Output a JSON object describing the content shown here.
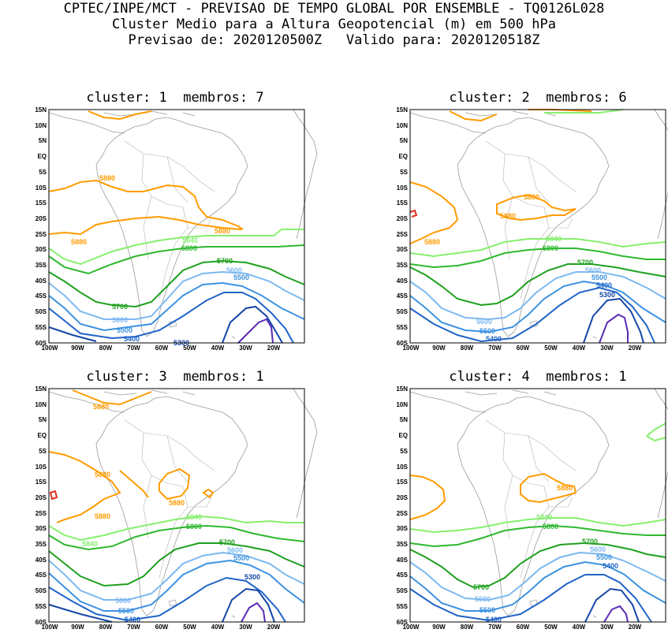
{
  "header": {
    "line1": "CPTEC/INPE/MCT - PREVISAO DE TEMPO GLOBAL POR ENSEMBLE - TQ0126L028",
    "line2": "Cluster Medio para a Altura Geopotencial (m) em 500 hPa",
    "line3": "Previsao de: 2020120500Z   Valido para: 2020120518Z"
  },
  "axes": {
    "lat_ticks": [
      "15N",
      "10N",
      "5N",
      "EQ",
      "5S",
      "10S",
      "15S",
      "20S",
      "25S",
      "30S",
      "35S",
      "40S",
      "45S",
      "50S",
      "55S",
      "60S"
    ],
    "lon_ticks": [
      "100W",
      "90W",
      "80W",
      "70W",
      "60W",
      "50W",
      "40W",
      "30W",
      "20W"
    ]
  },
  "colors": {
    "c5880": "#ff9b00",
    "c5840": "#86f06e",
    "c5800": "#2eb82e",
    "c5700": "#1fa01f",
    "c5600": "#7db9f0",
    "c5500": "#3c92e0",
    "c5400": "#1f64c8",
    "c5300": "#1546a8",
    "c5200": "#5a2ab8",
    "high": "#e03020",
    "coast": "#9a9a9a"
  },
  "panels": [
    {
      "title": "cluster: 1  membros: 7",
      "labels": {
        "a": "5880",
        "b": "5880",
        "c": "5880",
        "d": "5840",
        "e": "5800",
        "f": "5700",
        "g": "5600",
        "h": "5500",
        "i": "5700",
        "j": "5600",
        "k": "5500",
        "l": "5400",
        "m": "5300"
      }
    },
    {
      "title": "cluster: 2  membros: 6",
      "labels": {
        "a": "5880",
        "b": "5880",
        "c": "5880",
        "d": "5840",
        "e": "5800",
        "f": "5700",
        "g": "5600",
        "h": "5500",
        "i": "5400",
        "j": "5300",
        "k": "5600",
        "l": "5500",
        "m": "5400"
      }
    },
    {
      "title": "cluster: 3  membros: 1",
      "labels": {
        "a": "5880",
        "b": "5880",
        "c": "5880",
        "d": "5880",
        "e": "5840",
        "f": "5840",
        "g": "5800",
        "h": "5700",
        "i": "5600",
        "j": "5500",
        "k": "5300",
        "l": "5600",
        "m": "5500",
        "n": "5400"
      }
    },
    {
      "title": "cluster: 4  membros: 1",
      "labels": {
        "a": "5880",
        "b": "5840",
        "c": "5800",
        "d": "5700",
        "e": "5600",
        "f": "5500",
        "g": "5400",
        "h": "5700",
        "i": "5600",
        "j": "5500",
        "k": "5400"
      }
    }
  ]
}
